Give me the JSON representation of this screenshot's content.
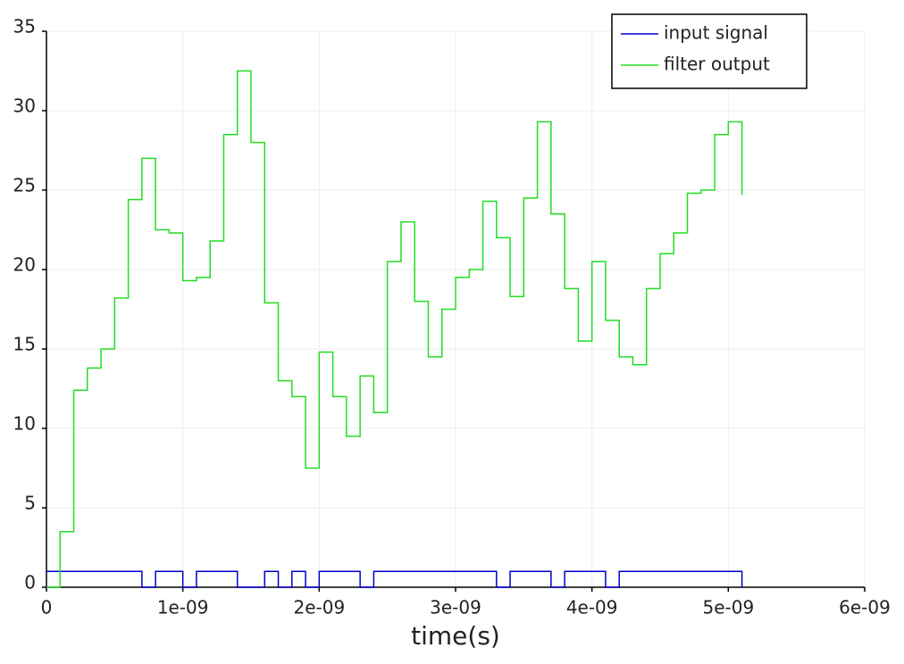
{
  "chart_data": {
    "type": "line",
    "step": true,
    "xlabel": "time(s)",
    "x": [
      0,
      1e-10,
      2e-10,
      3e-10,
      4e-10,
      5e-10,
      6e-10,
      7e-10,
      8e-10,
      9e-10,
      1e-09,
      1.1e-09,
      1.2e-09,
      1.3e-09,
      1.4e-09,
      1.5e-09,
      1.6e-09,
      1.7e-09,
      1.8e-09,
      1.9e-09,
      2e-09,
      2.1e-09,
      2.2e-09,
      2.3e-09,
      2.4e-09,
      2.5e-09,
      2.6e-09,
      2.7e-09,
      2.8e-09,
      2.9e-09,
      3e-09,
      3.1e-09,
      3.2e-09,
      3.3e-09,
      3.4e-09,
      3.5e-09,
      3.6e-09,
      3.7e-09,
      3.8e-09,
      3.9e-09,
      4e-09,
      4.1e-09,
      4.2e-09,
      4.3e-09,
      4.4e-09,
      4.5e-09,
      4.6e-09,
      4.7e-09,
      4.8e-09,
      4.9e-09,
      5e-09,
      5.1e-09
    ],
    "series": [
      {
        "name": "input signal",
        "color": "#0000cc",
        "values": [
          1,
          1,
          1,
          1,
          1,
          1,
          1,
          0,
          1,
          1,
          0,
          1,
          1,
          1,
          0,
          0,
          1,
          0,
          1,
          0,
          1,
          1,
          1,
          0,
          1,
          1,
          1,
          1,
          1,
          1,
          1,
          1,
          1,
          0,
          1,
          1,
          1,
          0,
          1,
          1,
          1,
          0,
          1,
          1,
          1,
          1,
          1,
          1,
          1,
          1,
          1,
          0
        ]
      },
      {
        "name": "filter output",
        "color": "#22dd22",
        "values": [
          0,
          3.5,
          12.4,
          13.8,
          15,
          18.2,
          24.4,
          27,
          22.5,
          22.3,
          19.3,
          19.5,
          21.8,
          28.5,
          32.5,
          28,
          17.9,
          13,
          12,
          7.5,
          14.8,
          12,
          9.5,
          13.3,
          11,
          20.5,
          23,
          18,
          14.5,
          17.5,
          19.5,
          20,
          24.3,
          22,
          18.3,
          24.5,
          29.3,
          23.5,
          18.8,
          15.5,
          20.5,
          16.8,
          14.5,
          14,
          18.8,
          21,
          22.3,
          24.8,
          25,
          28.5,
          29.3,
          24.7
        ]
      }
    ],
    "xlim": [
      0,
      6e-09
    ],
    "xticks": [
      0,
      {
        "value": 1e-09,
        "label": "1e-09"
      },
      {
        "value": 2e-09,
        "label": "2e-09"
      },
      {
        "value": 3e-09,
        "label": "3e-09"
      },
      {
        "value": 4e-09,
        "label": "4e-09"
      },
      {
        "value": 5e-09,
        "label": "5e-09"
      },
      {
        "value": 6e-09,
        "label": "6e-09"
      }
    ],
    "ylim": [
      0,
      35
    ],
    "yticks": [
      0,
      5,
      10,
      15,
      20,
      25,
      30,
      35
    ],
    "grid": true,
    "legend": "top-right"
  }
}
